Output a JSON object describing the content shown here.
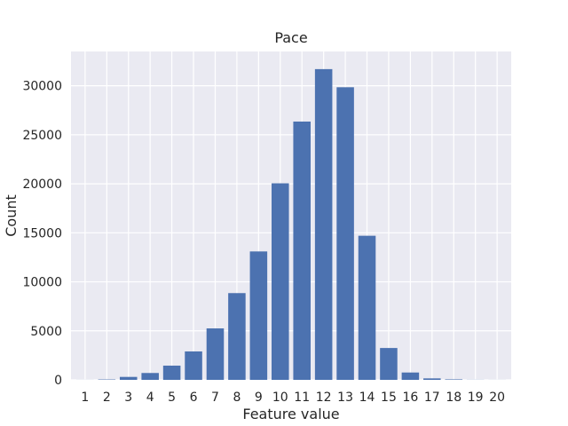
{
  "chart_data": {
    "type": "bar",
    "title": "Pace",
    "xlabel": "Feature value",
    "ylabel": "Count",
    "categories": [
      "1",
      "2",
      "3",
      "4",
      "5",
      "6",
      "7",
      "8",
      "9",
      "10",
      "11",
      "12",
      "13",
      "14",
      "15",
      "16",
      "17",
      "18",
      "19",
      "20"
    ],
    "values": [
      5,
      40,
      300,
      700,
      1450,
      2900,
      5250,
      8850,
      13100,
      20050,
      26350,
      31700,
      29850,
      14700,
      3250,
      750,
      150,
      50,
      10,
      5
    ],
    "ylim": [
      0,
      33500
    ],
    "yticks": [
      0,
      5000,
      10000,
      15000,
      20000,
      25000,
      30000
    ],
    "grid": true,
    "colors": {
      "bar": "#4c72b0",
      "background": "#eaeaf2",
      "grid": "#ffffff"
    }
  }
}
